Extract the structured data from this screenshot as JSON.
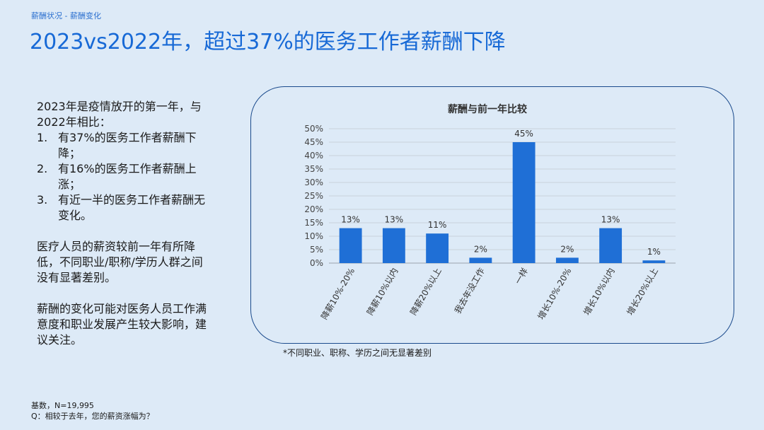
{
  "breadcrumb": "薪酬状况 - 薪酬变化",
  "title": "2023vs2022年，超过37%的医务工作者薪酬下降",
  "summary": {
    "intro": "2023年是疫情放开的第一年，与2022年相比：",
    "points": [
      {
        "num": "1.",
        "text": "有37%的医务工作者薪酬下降；"
      },
      {
        "num": "2.",
        "text": "有16%的医务工作者薪酬上涨；"
      },
      {
        "num": "3.",
        "text": "有近一半的医务工作者薪酬无变化。"
      }
    ],
    "para2": "医疗人员的薪资较前一年有所降低，不同职业/职称/学历人群之间没有显著差别。",
    "para3": "薪酬的变化可能对医务人员工作满意度和职业发展产生较大影响，建议关注。"
  },
  "chart_note": "*不同职业、职称、学历之间无显著差别",
  "footer": {
    "base": "基数，N=19,995",
    "question": "Q：相较于去年，您的薪资涨幅为？"
  },
  "colors": {
    "bar": "#1f6fd6",
    "title": "#1769d6",
    "background": "#ddeaf7"
  },
  "chart_data": {
    "type": "bar",
    "title": "薪酬与前一年比较",
    "categories": [
      "降薪10%-20%",
      "降薪10%以内",
      "降薪20%以上",
      "我去年没工作",
      "一样",
      "增长10%-20%",
      "增长10%以内",
      "增长20%以上"
    ],
    "values": [
      13,
      13,
      11,
      2,
      45,
      2,
      13,
      1
    ],
    "value_labels": [
      "13%",
      "13%",
      "11%",
      "2%",
      "45%",
      "2%",
      "13%",
      "1%"
    ],
    "y_ticks": [
      "0%",
      "5%",
      "10%",
      "15%",
      "20%",
      "25%",
      "30%",
      "35%",
      "40%",
      "45%",
      "50%"
    ],
    "ylim": [
      0,
      50
    ],
    "grid": true,
    "legend": "none"
  }
}
